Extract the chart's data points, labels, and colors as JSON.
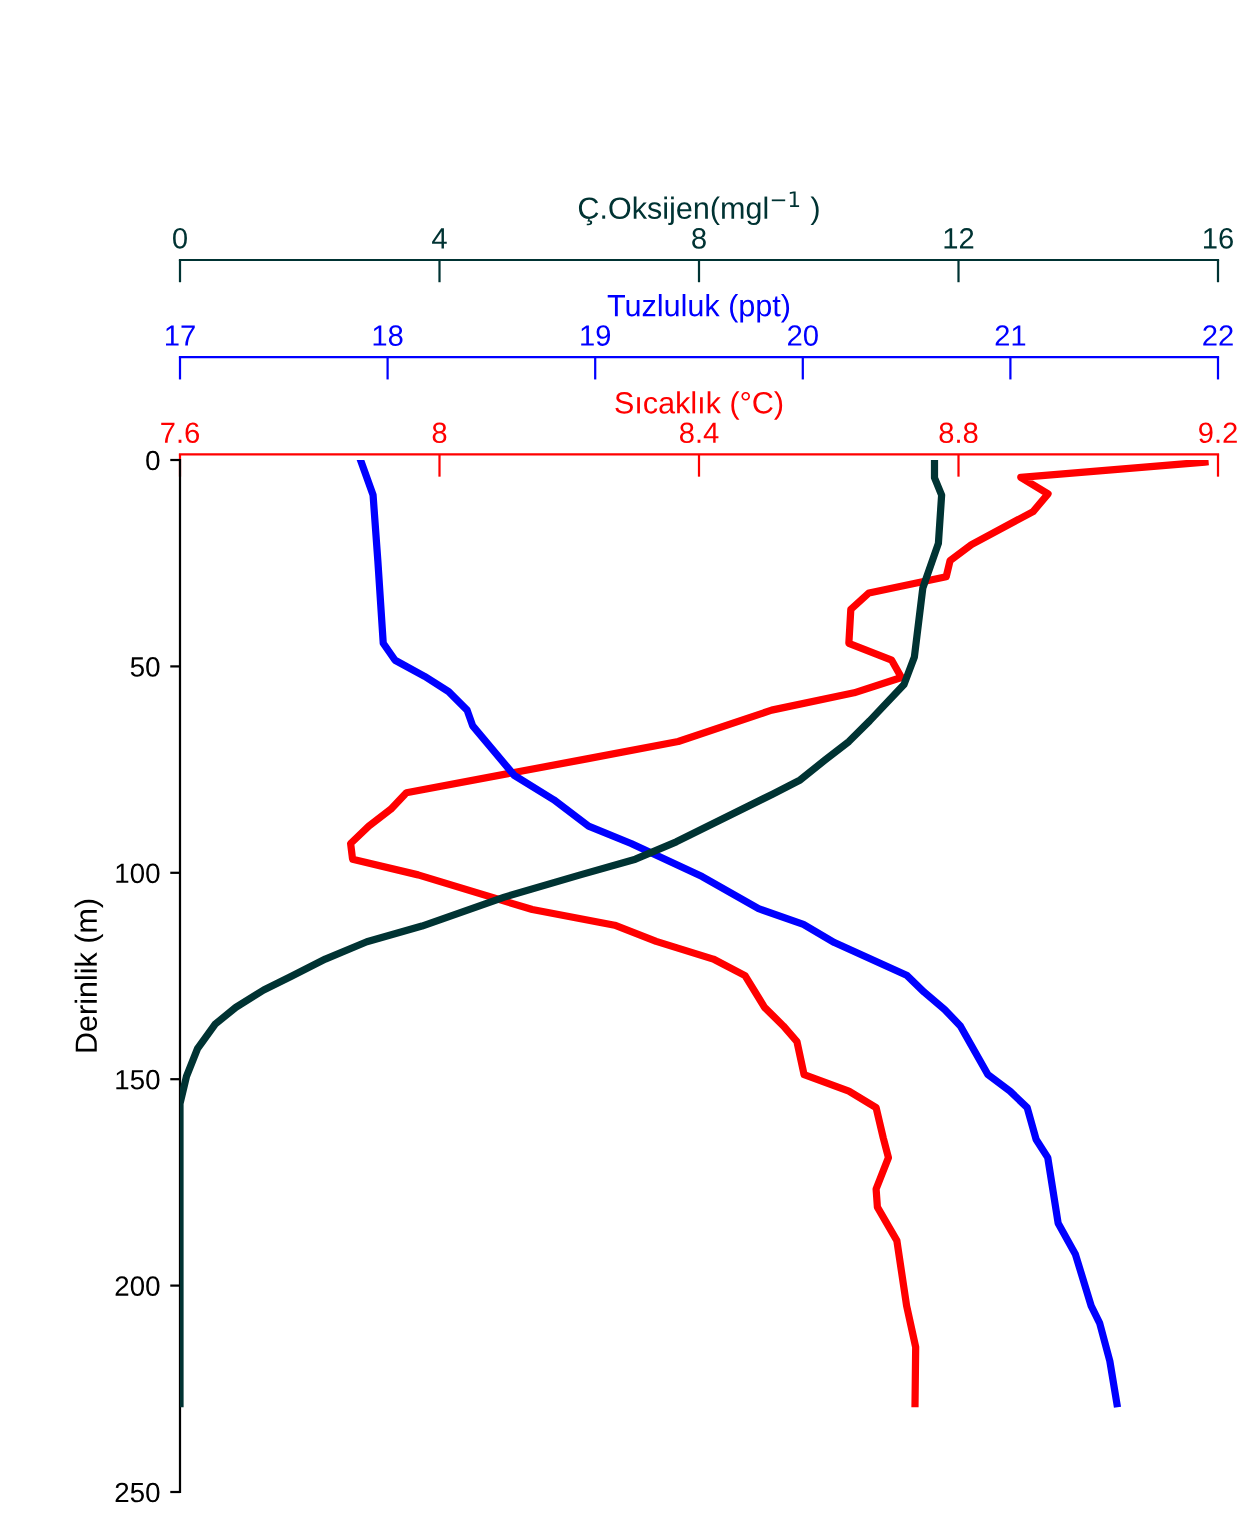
{
  "chart_data": [
    {
      "type": "line",
      "xlabel": "Sıcaklık (°C)",
      "xlim": [
        7.6,
        9.2
      ],
      "xticks": [
        7.6,
        8,
        8.4,
        8.8,
        9.2
      ],
      "ylabel": "Derinlik (m)",
      "ylim": [
        250,
        0
      ],
      "yticks": [
        0,
        50,
        100,
        150,
        200,
        250
      ],
      "marker": "none",
      "line_style": "solid",
      "series": [
        {
          "color": "#ff0000",
          "x": [
            9.18,
            8.896,
            8.938,
            8.915,
            8.82,
            8.787,
            8.781,
            8.662,
            8.634,
            8.631,
            8.697,
            8.712,
            8.639,
            8.512,
            8.368,
            8.227,
            7.949,
            7.925,
            7.891,
            7.863,
            7.866,
            7.967,
            8.143,
            8.27,
            8.334,
            8.422,
            8.471,
            8.501,
            8.53,
            8.551,
            8.562,
            8.631,
            8.673,
            8.684,
            8.692,
            8.673,
            8.675,
            8.705,
            8.72,
            8.734,
            8.733
          ],
          "values": [
            0.5,
            4.2,
            8.2,
            12.5,
            20.5,
            24.4,
            28.3,
            32.2,
            36.2,
            44.4,
            48.5,
            52.7,
            56.4,
            60.6,
            68.2,
            72.4,
            80.6,
            84.6,
            88.7,
            92.9,
            96.7,
            100.5,
            108.9,
            112.7,
            116.6,
            120.9,
            124.9,
            132.6,
            137.1,
            140.9,
            148.9,
            152.9,
            156.9,
            164.2,
            169,
            176.6,
            181,
            189.1,
            204.9,
            214.9,
            228.6
          ]
        }
      ]
    },
    {
      "type": "line",
      "xlabel": "Tuzluluk (ppt)",
      "xlim": [
        17,
        22
      ],
      "xticks": [
        17,
        18,
        19,
        20,
        21,
        22
      ],
      "ylim": [
        250,
        0
      ],
      "tick_labels": "x",
      "marker": "none",
      "line_style": "solid",
      "series": [
        {
          "color": "#0000ff",
          "x": [
            17.873,
            17.93,
            17.953,
            17.979,
            18.036,
            18.178,
            18.294,
            18.383,
            18.41,
            18.61,
            18.8,
            18.968,
            19.173,
            19.515,
            19.787,
            20.003,
            20.152,
            20.5,
            20.584,
            20.683,
            20.759,
            20.892,
            20.998,
            21.081,
            21.124,
            21.18,
            21.23,
            21.313,
            21.389,
            21.43,
            21.479,
            21.513
          ],
          "values": [
            0.5,
            8.5,
            24.4,
            44.4,
            48.5,
            52.4,
            56.1,
            60.6,
            64.4,
            76.4,
            82.3,
            88.7,
            92.9,
            100.9,
            108.7,
            112.5,
            116.9,
            124.8,
            128.9,
            133.1,
            137.1,
            148.9,
            152.9,
            156.9,
            164.6,
            169,
            184.9,
            192.4,
            204.9,
            209.1,
            218.3,
            228.6
          ]
        }
      ]
    },
    {
      "type": "line",
      "xlabel": "Ç.Oksijen(mgl$^{−1}$ )",
      "xlim": [
        0,
        16
      ],
      "xticks": [
        0,
        4,
        8,
        12,
        16
      ],
      "ylim": [
        250,
        0
      ],
      "tick_labels": "x",
      "marker": "none",
      "line_style": "solid",
      "series": [
        {
          "color": "#003333",
          "x": [
            11.63,
            11.63,
            11.74,
            11.69,
            11.45,
            11.32,
            11.16,
            10.63,
            10.31,
            9.94,
            9.56,
            9.14,
            7.65,
            7.02,
            6.17,
            5.0,
            3.73,
            2.88,
            2.24,
            1.71,
            1.29,
            0.86,
            0.54,
            0.27,
            0.1,
            0,
            0
          ],
          "values": [
            0.5,
            4.3,
            8.5,
            20.2,
            31,
            47.7,
            54.4,
            63.2,
            68.2,
            72.7,
            77.5,
            80.9,
            92.5,
            96.7,
            100.5,
            105.9,
            112.9,
            116.7,
            120.9,
            125.1,
            128.4,
            132.6,
            136.7,
            142.6,
            149.3,
            155.9,
            228.6
          ]
        }
      ]
    }
  ]
}
